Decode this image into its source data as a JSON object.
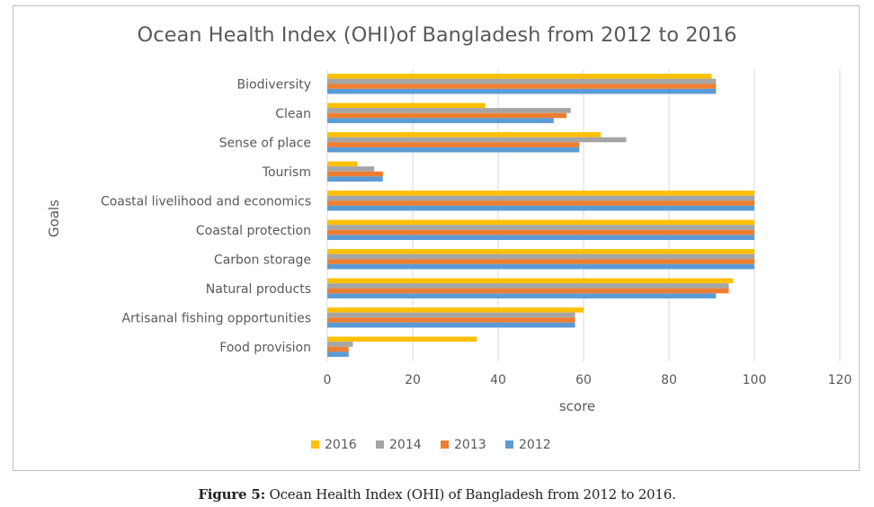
{
  "caption": {
    "label": "Figure 5:",
    "text": " Ocean Health Index (OHI) of Bangladesh from 2012 to 2016."
  },
  "chart_data": {
    "type": "bar",
    "orientation": "horizontal",
    "title": "Ocean Health Index (OHI)of Bangladesh from 2012 to 2016",
    "xlabel": "score",
    "ylabel": "Goals",
    "xlim": [
      0,
      120
    ],
    "xticks": [
      0,
      20,
      40,
      60,
      80,
      100,
      120
    ],
    "grid": "vertical",
    "legend_position": "bottom",
    "categories": [
      "Biodiversity",
      "Clean",
      "Sense of place",
      "Tourism",
      "Coastal livelihood and economics",
      "Coastal protection",
      "Carbon storage",
      "Natural products",
      "Artisanal fishing opportunities",
      "Food provision"
    ],
    "series": [
      {
        "name": "2016",
        "color": "#FFC000",
        "values": [
          90,
          37,
          64,
          7,
          100,
          100,
          100,
          95,
          60,
          35
        ]
      },
      {
        "name": "2014",
        "color": "#A5A5A5",
        "values": [
          91,
          57,
          70,
          11,
          100,
          100,
          100,
          94,
          58,
          6
        ]
      },
      {
        "name": "2013",
        "color": "#ED7D31",
        "values": [
          91,
          56,
          59,
          13,
          100,
          100,
          100,
          94,
          58,
          5
        ]
      },
      {
        "name": "2012",
        "color": "#5B9BD5",
        "values": [
          91,
          53,
          59,
          13,
          100,
          100,
          100,
          91,
          58,
          5
        ]
      }
    ]
  }
}
